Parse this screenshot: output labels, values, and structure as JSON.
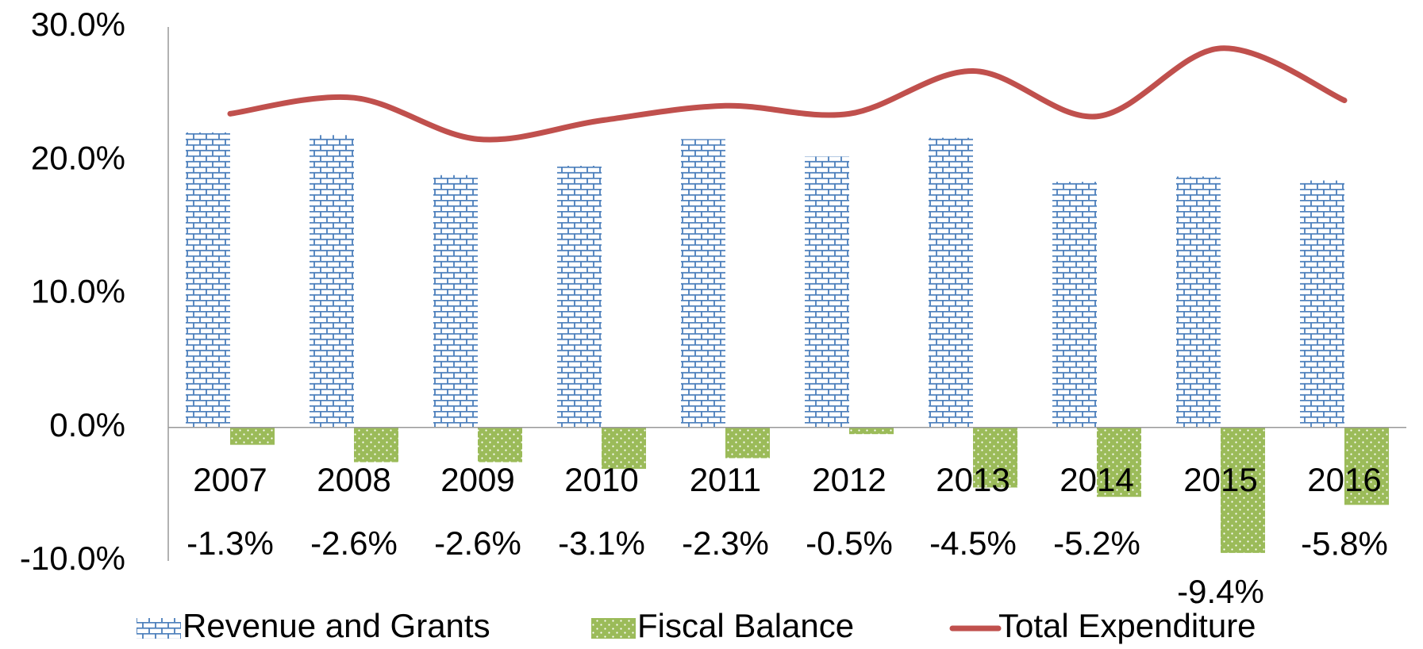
{
  "chart_data": {
    "type": "bar",
    "categories": [
      "2007",
      "2008",
      "2009",
      "2010",
      "2011",
      "2012",
      "2013",
      "2014",
      "2015",
      "2016"
    ],
    "series": [
      {
        "name": "Revenue and Grants",
        "type": "bar",
        "color": "#4a7ebb",
        "pattern": "brick",
        "values": [
          22.1,
          21.9,
          18.9,
          19.6,
          21.6,
          20.3,
          21.7,
          18.4,
          18.8,
          18.5
        ]
      },
      {
        "name": "Fiscal Balance",
        "type": "bar",
        "color": "#9bbb59",
        "pattern": "dots",
        "values": [
          -1.3,
          -2.6,
          -2.6,
          -3.1,
          -2.3,
          -0.5,
          -4.5,
          -5.2,
          -9.4,
          -5.8
        ],
        "value_labels": [
          "-1.3%",
          "-2.6%",
          "-2.6%",
          "-3.1%",
          "-2.3%",
          "-0.5%",
          "-4.5%",
          "-5.2%",
          "-9.4%",
          "-5.8%"
        ]
      },
      {
        "name": "Total Expenditure",
        "type": "line",
        "color": "#c0504d",
        "values": [
          23.5,
          24.7,
          21.6,
          23.0,
          24.1,
          23.5,
          26.7,
          23.3,
          28.4,
          24.5
        ]
      }
    ],
    "ylim": [
      -10,
      30
    ],
    "yticks": [
      {
        "value": -10,
        "label": "-10.0%"
      },
      {
        "value": 0,
        "label": "0.0%"
      },
      {
        "value": 10,
        "label": "10.0%"
      },
      {
        "value": 20,
        "label": "20.0%"
      },
      {
        "value": 30,
        "label": "30.0%"
      }
    ],
    "grid": false,
    "legend": "bottom"
  }
}
